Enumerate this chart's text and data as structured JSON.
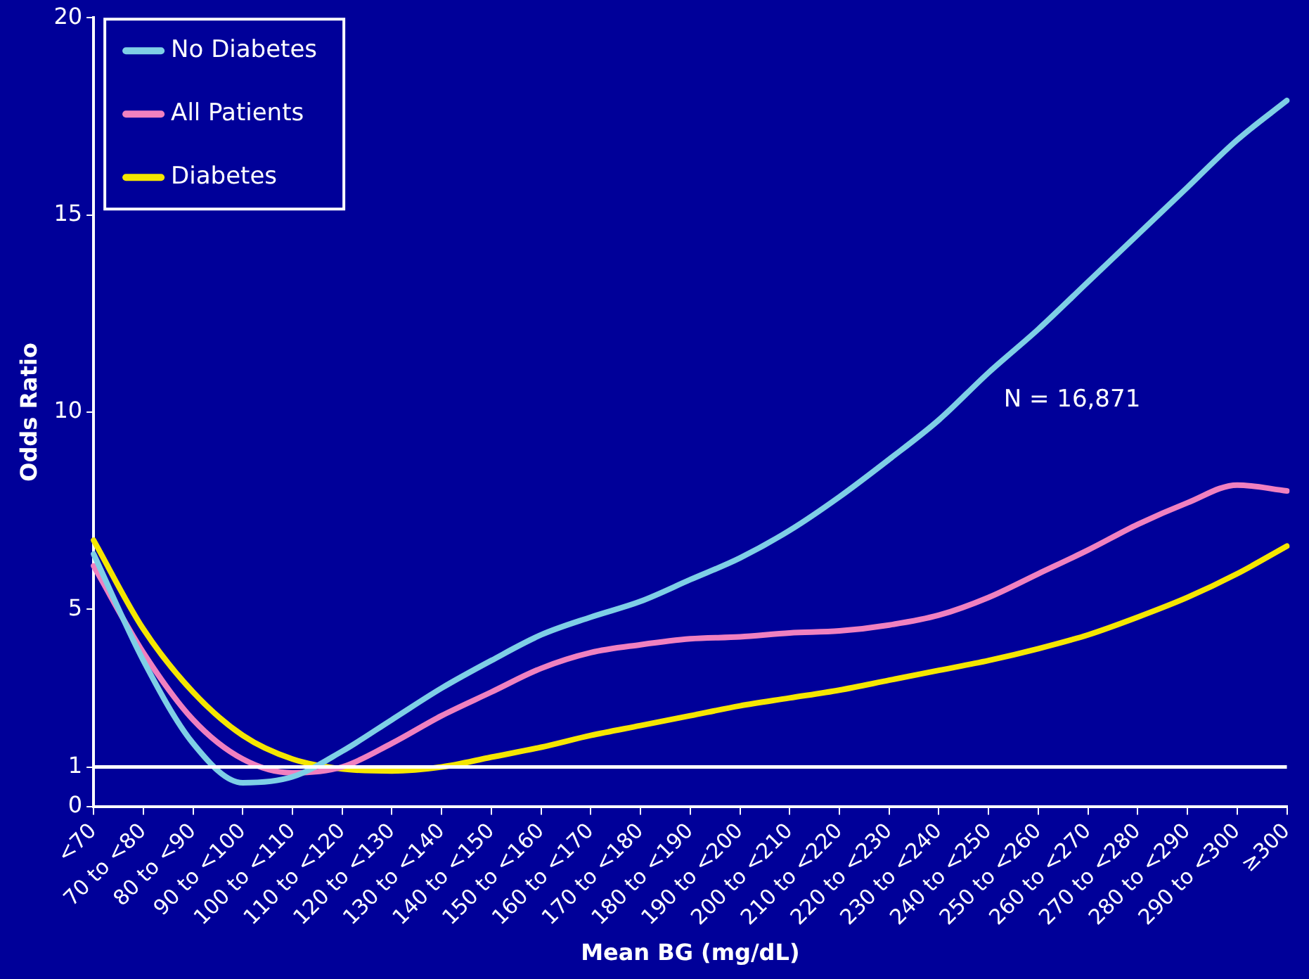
{
  "chart_data": {
    "type": "line",
    "xlabel": "Mean BG (mg/dL)",
    "ylabel": "Odds Ratio",
    "categories": [
      "<70",
      "70 to <80",
      "80 to <90",
      "90 to <100",
      "100 to <110",
      "110 to <120",
      "120 to <130",
      "130 to <140",
      "140 to <150",
      "150 to <160",
      "160 to <170",
      "170 to <180",
      "180 to <190",
      "190 to <200",
      "200 to <210",
      "210 to <220",
      "220 to <230",
      "230 to <240",
      "240 to <250",
      "250 to <260",
      "260 to <270",
      "270 to <280",
      "280 to <290",
      "290 to <300",
      "≥300"
    ],
    "series": [
      {
        "name": "No Diabetes",
        "color": "#7ecfe6",
        "values": [
          6.4,
          3.7,
          1.6,
          0.6,
          0.75,
          1.4,
          2.2,
          3.0,
          3.7,
          4.35,
          4.8,
          5.2,
          5.75,
          6.3,
          7.0,
          7.85,
          8.8,
          9.8,
          11.0,
          12.1,
          13.3,
          14.5,
          15.7,
          16.9,
          17.9
        ]
      },
      {
        "name": "All Patients",
        "color": "#f080c0",
        "values": [
          6.1,
          3.9,
          2.2,
          1.2,
          0.85,
          1.0,
          1.6,
          2.3,
          2.9,
          3.5,
          3.9,
          4.1,
          4.25,
          4.3,
          4.4,
          4.45,
          4.6,
          4.85,
          5.3,
          5.9,
          6.5,
          7.15,
          7.7,
          8.15,
          8.0
        ]
      },
      {
        "name": "Diabetes",
        "color": "#f5e600",
        "values": [
          6.75,
          4.5,
          2.9,
          1.8,
          1.2,
          0.95,
          0.9,
          1.0,
          1.25,
          1.5,
          1.8,
          2.05,
          2.3,
          2.55,
          2.75,
          2.95,
          3.2,
          3.45,
          3.7,
          4.0,
          4.35,
          4.8,
          5.3,
          5.9,
          6.6
        ]
      }
    ],
    "ylim": [
      0,
      20
    ],
    "yticks": [
      0,
      1,
      5,
      10,
      15,
      20
    ],
    "ref_lines": [
      {
        "axis": "y",
        "value": 1,
        "color": "#ffffff"
      }
    ],
    "annotations": [
      "N = 16,871"
    ],
    "grid": false,
    "legend": "top left",
    "marker": "none",
    "line_style": "solid"
  }
}
